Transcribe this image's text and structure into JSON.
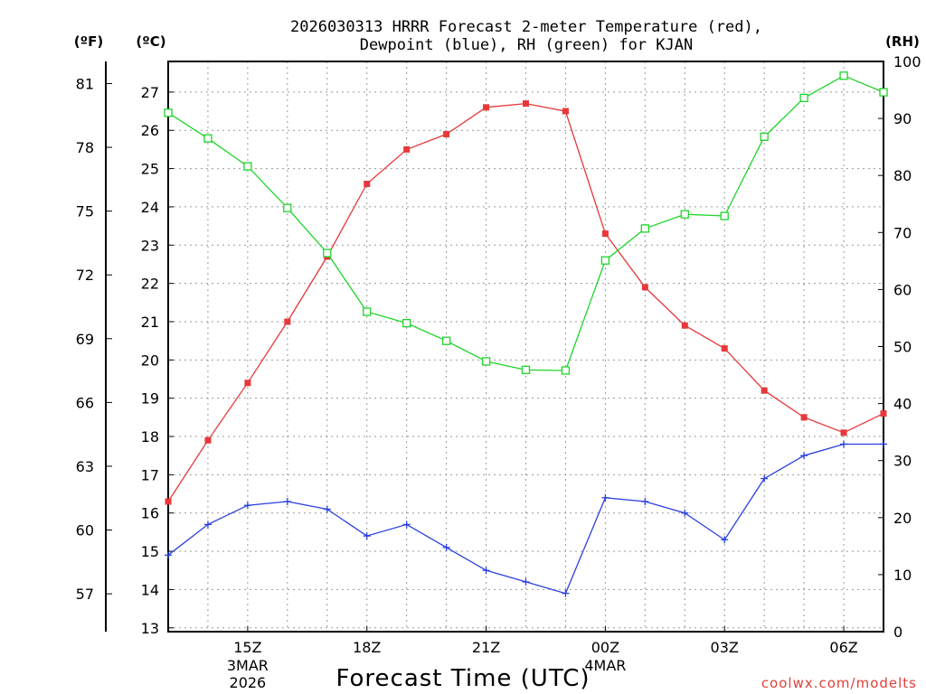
{
  "chart_data": {
    "type": "line",
    "title_line1": "2026030313 HRRR Forecast 2-meter Temperature (red),",
    "title_line2": "Dewpoint (blue), RH (green) for KJAN",
    "xlabel": "Forecast Time (UTC)",
    "credit": "coolwx.com/modelts",
    "units": {
      "f": "(ºF)",
      "c": "(ºC)",
      "rh": "(RH)"
    },
    "x_range_hours": [
      13,
      31
    ],
    "x_ticks": [
      {
        "hour": 15,
        "label": "15Z",
        "date1": "3MAR",
        "date2": "2026"
      },
      {
        "hour": 18,
        "label": "18Z",
        "date1": "",
        "date2": ""
      },
      {
        "hour": 21,
        "label": "21Z",
        "date1": "",
        "date2": ""
      },
      {
        "hour": 24,
        "label": "00Z",
        "date1": "4MAR",
        "date2": ""
      },
      {
        "hour": 27,
        "label": "03Z",
        "date1": "",
        "date2": ""
      },
      {
        "hour": 30,
        "label": "06Z",
        "date1": "",
        "date2": ""
      }
    ],
    "c_range": [
      12.9,
      27.8
    ],
    "c_ticks": [
      "13",
      "14",
      "15",
      "16",
      "17",
      "18",
      "19",
      "20",
      "21",
      "22",
      "23",
      "24",
      "25",
      "26",
      "27"
    ],
    "f_ticks": [
      "57",
      "60",
      "63",
      "66",
      "69",
      "72",
      "75",
      "78",
      "81"
    ],
    "rh_range": [
      0,
      100
    ],
    "rh_ticks": [
      "0",
      "10",
      "20",
      "30",
      "40",
      "50",
      "60",
      "70",
      "80",
      "90",
      "100"
    ],
    "series": [
      {
        "name": "2-meter Temperature",
        "color": "#e8383a",
        "marker": "filled-square",
        "axis": "c",
        "x": [
          13,
          14,
          15,
          16,
          17,
          18,
          19,
          20,
          21,
          22,
          23,
          24,
          25,
          26,
          27,
          28,
          29,
          30,
          31
        ],
        "values": [
          16.3,
          17.9,
          19.4,
          21.0,
          22.7,
          24.6,
          25.5,
          25.9,
          26.6,
          26.7,
          26.5,
          23.3,
          21.9,
          20.9,
          20.3,
          19.2,
          18.5,
          18.1,
          18.6
        ]
      },
      {
        "name": "Dewpoint",
        "color": "#2a3fe0",
        "marker": "plus",
        "axis": "c",
        "x": [
          13,
          14,
          15,
          16,
          17,
          18,
          19,
          20,
          21,
          22,
          23,
          24,
          25,
          26,
          27,
          28,
          29,
          30,
          31
        ],
        "values": [
          14.9,
          15.7,
          16.2,
          16.3,
          16.1,
          15.4,
          15.7,
          15.1,
          14.5,
          14.2,
          13.9,
          16.4,
          16.3,
          16.0,
          15.3,
          16.9,
          17.5,
          17.8,
          17.8
        ]
      },
      {
        "name": "RH",
        "color": "#1ed42a",
        "marker": "open-square",
        "axis": "rh",
        "x": [
          13,
          14,
          15,
          16,
          17,
          18,
          19,
          20,
          21,
          22,
          23,
          24,
          25,
          26,
          27,
          28,
          29,
          30,
          31
        ],
        "values": [
          91,
          86.5,
          81.6,
          74.3,
          66.4,
          56.1,
          54.1,
          51.0,
          47.4,
          45.9,
          45.8,
          65.1,
          70.7,
          73.2,
          72.9,
          86.8,
          93.6,
          97.5,
          94.6
        ]
      }
    ]
  }
}
